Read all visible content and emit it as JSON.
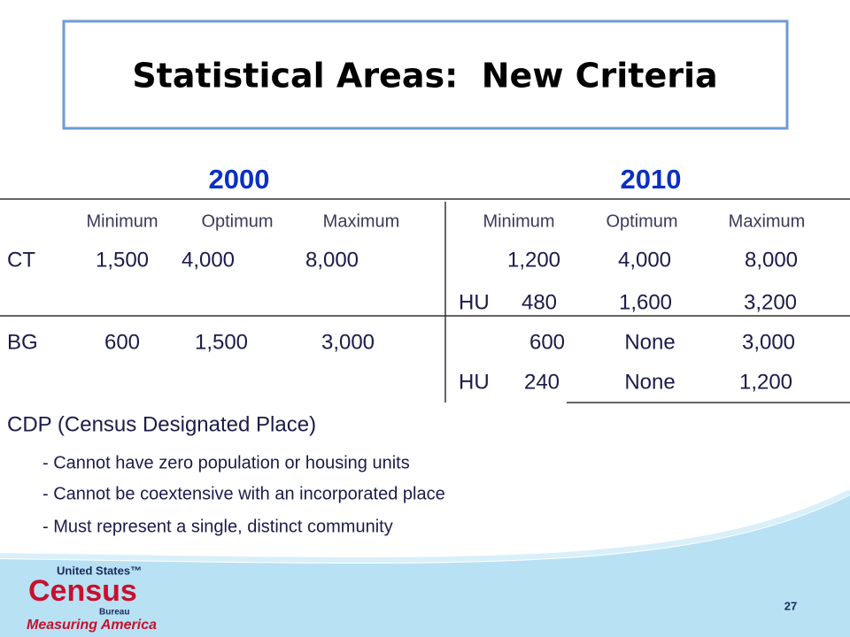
{
  "title": "Statistical Areas:  New Criteria",
  "years": [
    "2000",
    "2010"
  ],
  "table": {
    "headers": [
      [
        "Minimum",
        "Optimum",
        "Maximum"
      ],
      [
        "Minimum",
        "Optimum",
        "Maximum"
      ]
    ],
    "rows": [
      {
        "label": "CT",
        "values_2000": [
          "1,500",
          "4,000",
          "8,000"
        ],
        "values_2010": [
          "1,200",
          "4,000",
          "8,000"
        ]
      },
      {
        "label_2010": "HU",
        "values_2010": [
          "480",
          "1,600",
          "3,200"
        ]
      },
      {
        "label": "BG",
        "values_2000": [
          "600",
          "1,500",
          "3,000"
        ],
        "values_2010": [
          "600",
          "None",
          "3,000"
        ]
      },
      {
        "label_2010": "HU",
        "values_2010": [
          "240",
          "None",
          "1,200"
        ]
      }
    ]
  },
  "cdp": {
    "heading": "CDP (Census Designated Place)",
    "bullets": [
      "- Cannot have zero population or housing units",
      "- Cannot be coextensive with an incorporated place",
      "- Must represent a single, distinct community"
    ]
  },
  "footer": {
    "logo_top": "United States™",
    "logo_main": "Census",
    "logo_bureau": "Bureau",
    "logo_tagline": "Measuring America",
    "page_number": "27"
  }
}
